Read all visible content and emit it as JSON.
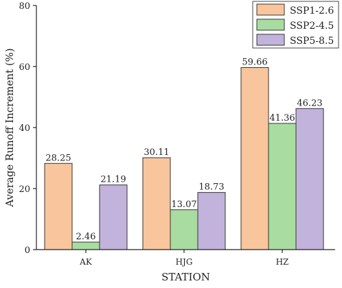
{
  "chart_data": {
    "type": "bar",
    "title": "",
    "xlabel": "STATION",
    "ylabel": "Average Runoff Increment (%)",
    "categories": [
      "AK",
      "HJG",
      "HZ"
    ],
    "ylim": [
      0,
      80
    ],
    "yticks": [
      0,
      20,
      40,
      60,
      80
    ],
    "legend_position": "top-right",
    "grid": false,
    "series": [
      {
        "name": "SSP1-2.6",
        "color": "#f9c59c",
        "values": [
          28.25,
          30.11,
          59.66
        ],
        "labels": [
          "28.25",
          "30.11",
          "59.66"
        ]
      },
      {
        "name": "SSP2-4.5",
        "color": "#a9dca0",
        "values": [
          2.46,
          13.07,
          41.36
        ],
        "labels": [
          "2.46",
          "13.07",
          "41.36"
        ]
      },
      {
        "name": "SSP5-8.5",
        "color": "#c1b3dc",
        "values": [
          21.19,
          18.73,
          46.23
        ],
        "labels": [
          "21.19",
          "18.73",
          "46.23"
        ]
      }
    ]
  }
}
